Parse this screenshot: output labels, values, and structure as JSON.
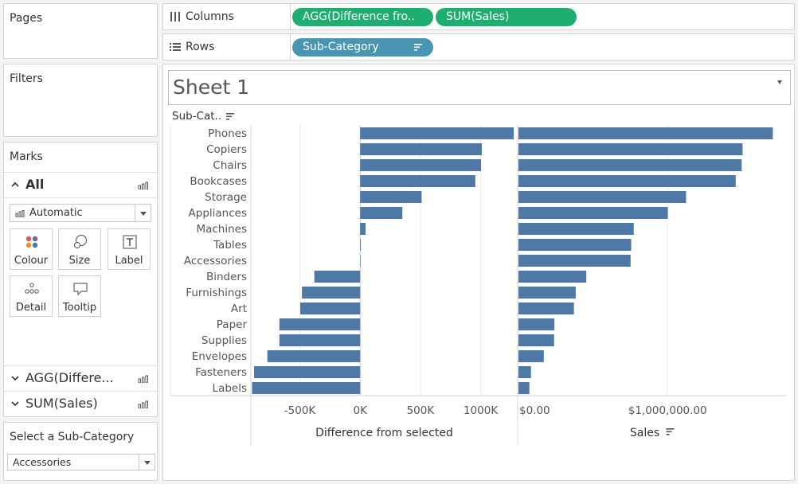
{
  "cards": {
    "pages": "Pages",
    "filters": "Filters",
    "marks": "Marks"
  },
  "marks": {
    "all_label": "All",
    "mark_type": "Automatic",
    "buttons": {
      "colour": "Colour",
      "size": "Size",
      "label": "Label",
      "detail": "Detail",
      "tooltip": "Tooltip"
    },
    "measure_1": "AGG(Differe...",
    "measure_2": "SUM(Sales)"
  },
  "parameter": {
    "title": "Select  a Sub-Category",
    "value": "Accessories"
  },
  "shelves": {
    "columns_label": "Columns",
    "rows_label": "Rows",
    "column_pills": [
      "AGG(Difference fro..",
      "SUM(Sales)"
    ],
    "row_pill": "Sub-Category"
  },
  "sheet": {
    "title": "Sheet 1",
    "row_header": "Sub-Cat.."
  },
  "colors": {
    "bar": "#4e79a7",
    "pill_green": "#1eae6f",
    "pill_blue": "#4996b2"
  },
  "chart_data": {
    "type": "bar",
    "orientation": "horizontal",
    "categories": [
      "Phones",
      "Copiers",
      "Chairs",
      "Bookcases",
      "Storage",
      "Appliances",
      "Machines",
      "Tables",
      "Accessories",
      "Binders",
      "Furnishings",
      "Art",
      "Paper",
      "Supplies",
      "Envelopes",
      "Fasteners",
      "Labels"
    ],
    "series": [
      {
        "values": [
          1274000,
          1009000,
          1003000,
          955000,
          510000,
          350000,
          45000,
          6000,
          0,
          -380000,
          -483000,
          -497000,
          -670000,
          -670000,
          -770000,
          -880000,
          -897000
        ],
        "xlabel": "Difference from selected",
        "xlim": [
          -900000,
          1300000
        ],
        "ticks": [
          -500000,
          0,
          500000,
          1000000
        ],
        "tick_labels": [
          "-500K",
          "0K",
          "500K",
          "1000K"
        ]
      },
      {
        "values": [
          1706000,
          1503000,
          1497000,
          1457000,
          1124000,
          1002000,
          773000,
          756000,
          752000,
          455000,
          384000,
          372000,
          241000,
          239000,
          170000,
          84000,
          73000
        ],
        "xlabel": "Sales",
        "xlim": [
          0,
          1800000
        ],
        "ticks": [
          0,
          1000000
        ],
        "tick_labels": [
          "$0.00",
          "$1,000,000.00"
        ]
      }
    ],
    "grid": true
  }
}
